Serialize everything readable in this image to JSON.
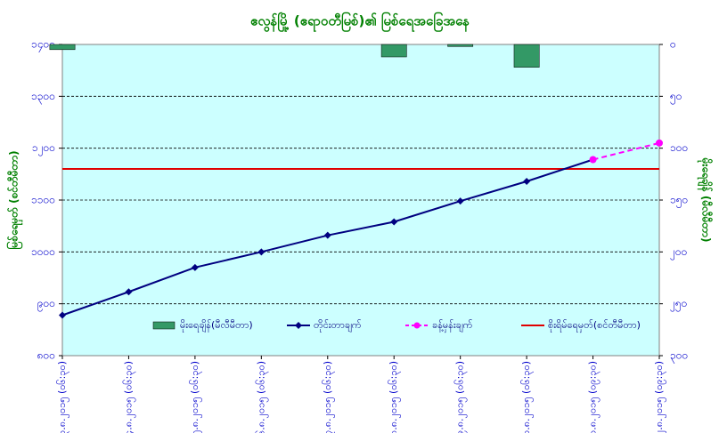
{
  "chart_data": {
    "type": "combo",
    "title": "ဧလွန်မြို့ (ဧရာဝတီမြစ်)၏ မြစ်ရေအခြေအနေ",
    "y_label": "မြစ်ရေမှတ် (စင်တီမီတာ)",
    "y2_label": "မိုးရေချိန် (မီလီမီတာ)",
    "categories": [
      "၃.၈.၂၀၁၅ (၀၆:၃၀)",
      "၄.၈.၂၀၁၅ (၀၆:၃၀)",
      "၅.၈.၂၀၁၅ (၀၆:၃၀)",
      "၆.၈.၂၀၁၅ (၀၆:၃၀)",
      "၇.၈.၂၀၁၅ (၀၆:၃၀)",
      "၈.၈.၂၀၁၅ (၀၆:၃၀)",
      "၉.၈.၂၀၁၅ (၀၆:၃၀)",
      "၁၀.၈.၂၀၁၅ (၀၆:၃၀)",
      "၁၁.၈.၂၀၁၅ (၀၉:၃၀)",
      "၁၂.၈.၂၀၁၅ (၀၉:၃၀)"
    ],
    "ylim": [
      800,
      1400
    ],
    "yticks": [
      {
        "value": 800,
        "label": "၈၀၀"
      },
      {
        "value": 900,
        "label": "၉၀၀"
      },
      {
        "value": 1000,
        "label": "၁၀၀၀"
      },
      {
        "value": 1100,
        "label": "၁၁၀၀"
      },
      {
        "value": 1200,
        "label": "၁၂၀၀"
      },
      {
        "value": 1300,
        "label": "၁၃၀၀"
      },
      {
        "value": 1400,
        "label": "၁၄၀၀"
      }
    ],
    "y2lim": [
      0,
      300
    ],
    "y2_inverted": true,
    "y2ticks": [
      {
        "value": 0,
        "label": "၀"
      },
      {
        "value": 50,
        "label": "၅၀"
      },
      {
        "value": 100,
        "label": "၁၀၀"
      },
      {
        "value": 150,
        "label": "၁၅၀"
      },
      {
        "value": 200,
        "label": "၂၀၀"
      },
      {
        "value": 250,
        "label": "၂၅၀"
      },
      {
        "value": 300,
        "label": "၃၀၀"
      }
    ],
    "grid": true,
    "series": [
      {
        "name": "မိုးရေချိန်(မီလီမီတာ)",
        "kind": "bar",
        "axis": "y2",
        "color": "#339966",
        "values": [
          5,
          0,
          0,
          0,
          0,
          12,
          2,
          22,
          null,
          null
        ]
      },
      {
        "name": "တိုင်းတာချက်",
        "kind": "line",
        "color": "#000080",
        "marker": "diamond",
        "values": [
          878,
          923,
          970,
          1000,
          1032,
          1058,
          1098,
          1136,
          1178,
          null
        ]
      },
      {
        "name": "ခန့်မှန်းချက်",
        "kind": "line",
        "color": "#ff00ff",
        "dashed": true,
        "marker": "circle",
        "values": [
          null,
          null,
          null,
          null,
          null,
          null,
          null,
          null,
          1178,
          1210
        ]
      }
    ],
    "reference_line": {
      "name": "စိုးရိမ်ရေမှတ်(စင်တီမီတာ)",
      "value": 1160,
      "color": "#e00000"
    }
  }
}
